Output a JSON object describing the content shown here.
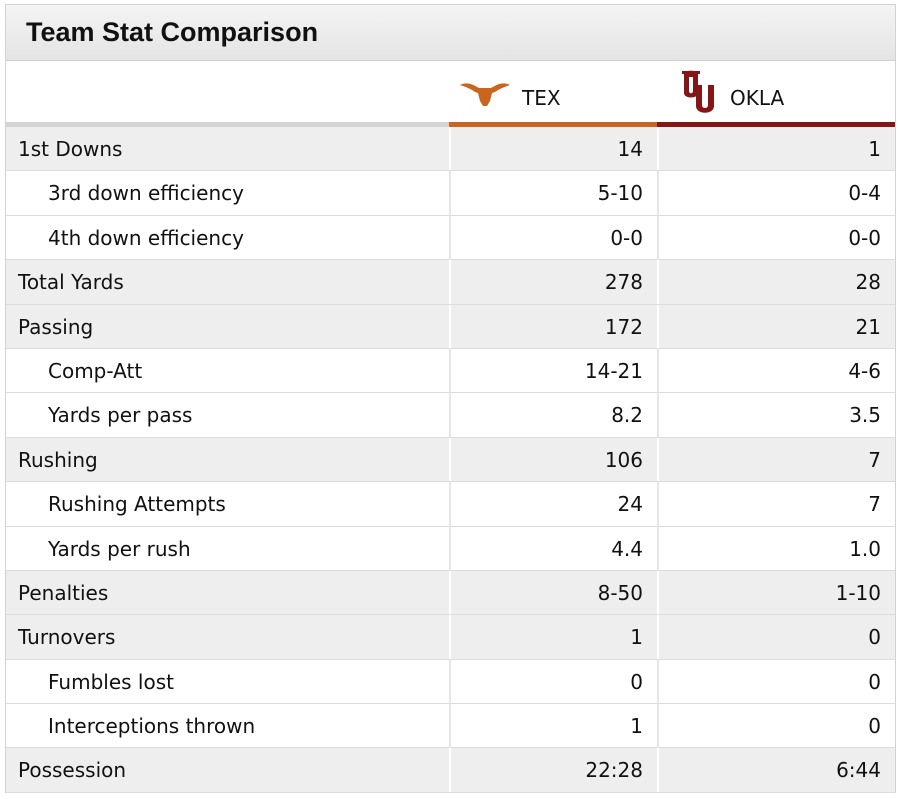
{
  "title": "Team Stat Comparison",
  "teams": {
    "tex": {
      "name": "TEX",
      "color": "#c9651f",
      "icon": "longhorn-logo-icon"
    },
    "okla": {
      "name": "OKLA",
      "color": "#841617",
      "icon": "ou-logo-icon"
    }
  },
  "rows": [
    {
      "label": "1st Downs",
      "type": "main",
      "tex": "14",
      "okla": "1"
    },
    {
      "label": "3rd down efficiency",
      "type": "sub",
      "tex": "5-10",
      "okla": "0-4"
    },
    {
      "label": "4th down efficiency",
      "type": "sub",
      "tex": "0-0",
      "okla": "0-0"
    },
    {
      "label": "Total Yards",
      "type": "main",
      "tex": "278",
      "okla": "28"
    },
    {
      "label": "Passing",
      "type": "main",
      "tex": "172",
      "okla": "21"
    },
    {
      "label": "Comp-Att",
      "type": "sub",
      "tex": "14-21",
      "okla": "4-6"
    },
    {
      "label": "Yards per pass",
      "type": "sub",
      "tex": "8.2",
      "okla": "3.5"
    },
    {
      "label": "Rushing",
      "type": "main",
      "tex": "106",
      "okla": "7"
    },
    {
      "label": "Rushing Attempts",
      "type": "sub",
      "tex": "24",
      "okla": "7"
    },
    {
      "label": "Yards per rush",
      "type": "sub",
      "tex": "4.4",
      "okla": "1.0"
    },
    {
      "label": "Penalties",
      "type": "main",
      "tex": "8-50",
      "okla": "1-10"
    },
    {
      "label": "Turnovers",
      "type": "main",
      "tex": "1",
      "okla": "0"
    },
    {
      "label": "Fumbles lost",
      "type": "sub",
      "tex": "0",
      "okla": "0"
    },
    {
      "label": "Interceptions thrown",
      "type": "sub",
      "tex": "1",
      "okla": "0"
    },
    {
      "label": "Possession",
      "type": "main",
      "tex": "22:28",
      "okla": "6:44"
    }
  ]
}
